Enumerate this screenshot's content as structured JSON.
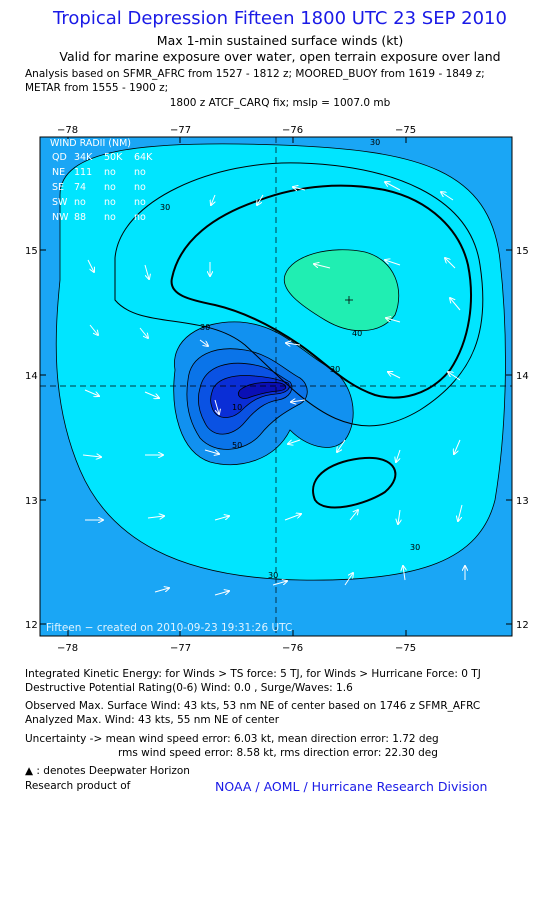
{
  "header": {
    "title": "Tropical Depression Fifteen 1800 UTC 23 SEP 2010",
    "subtitle1": "Max 1-min sustained surface winds (kt)",
    "subtitle2": "Valid for marine exposure over water, open terrain exposure over land",
    "analysis_line1": "Analysis based on SFMR_AFRC from 1527 - 1812 z; MOORED_BUOY from 1619 - 1849 z;",
    "analysis_line2": "METAR from 1555 - 1900 z;",
    "fix_line": "1800 z ATCF_CARQ fix; mslp = 1007.0 mb"
  },
  "map": {
    "lon_ticks": [
      "−78",
      "−77",
      "−76",
      "−75"
    ],
    "lat_ticks": [
      "15",
      "14",
      "13",
      "12"
    ],
    "contour_labels": [
      "30",
      "30",
      "30",
      "30",
      "30",
      "40",
      "50",
      "10",
      "30"
    ],
    "watermark": "Fifteen − created on 2010-09-23 19:31:26 UTC",
    "center": {
      "lon": -76.2,
      "lat": 13.9
    },
    "colors": {
      "band_20_30": "#1aa6f5",
      "band_30_40": "#00e5ff",
      "band_40_50": "#20eeb2",
      "low_1": "#1191f0",
      "low_2": "#0a74e9",
      "low_3": "#0a52e3",
      "low_4": "#0a2ed6",
      "low_5": "#0a0fb5",
      "background": "#1aa6f5"
    },
    "wind_radii": {
      "title": "WIND RADII (NM)",
      "headers": [
        "QD",
        "34K",
        "50K",
        "64K"
      ],
      "rows": [
        [
          "NE",
          "111",
          "no",
          "no"
        ],
        [
          "SE",
          "74",
          "no",
          "no"
        ],
        [
          "SW",
          "no",
          "no",
          "no"
        ],
        [
          "NW",
          "88",
          "no",
          "no"
        ]
      ]
    }
  },
  "footer": {
    "ike": "Integrated Kinetic Energy:  for Winds > TS force: 5 TJ,  for Winds > Hurricane Force: 0 TJ",
    "dpr": "Destructive Potential Rating(0-6)   Wind: 0.0 , Surge/Waves: 1.6",
    "observed": "Observed Max. Surface Wind: 43 kts, 53 nm NE of center based on 1746 z SFMR_AFRC",
    "analyzed": "Analyzed Max. Wind: 43 kts, 55 nm NE of center",
    "uncert1": "Uncertainty -> mean wind speed error: 6.03 kt,   mean direction error: 1.72 deg",
    "uncert2": "rms wind speed error: 8.58 kt,   rms direction error: 22.30 deg",
    "deepwater": ": denotes Deepwater Horizon",
    "research": "Research product of",
    "org": "NOAA / AOML / Hurricane Research Division"
  }
}
